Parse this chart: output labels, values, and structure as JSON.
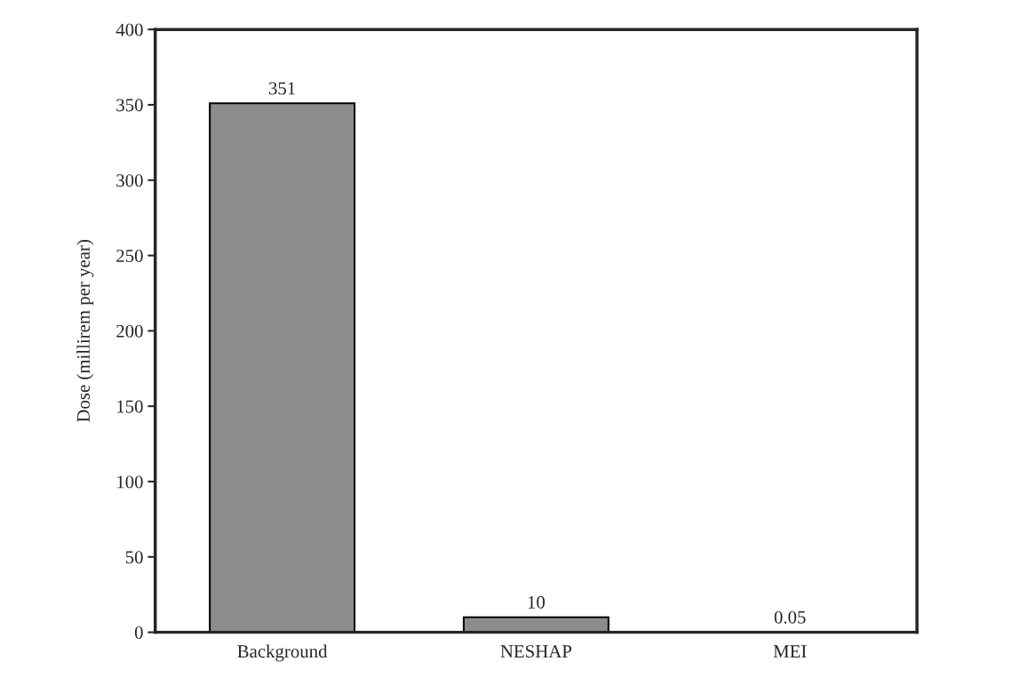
{
  "chart_data": {
    "type": "bar",
    "ylabel": "Dose (millirem per year)",
    "categories": [
      "Background",
      "NESHAP",
      "MEI"
    ],
    "values": [
      351,
      10,
      0.05
    ],
    "color": "#8c8c8c",
    "ylim": [
      0,
      400
    ],
    "yticks": [
      0,
      50,
      100,
      150,
      200,
      250,
      300,
      350,
      400
    ],
    "data_labels": true,
    "grid": false
  }
}
